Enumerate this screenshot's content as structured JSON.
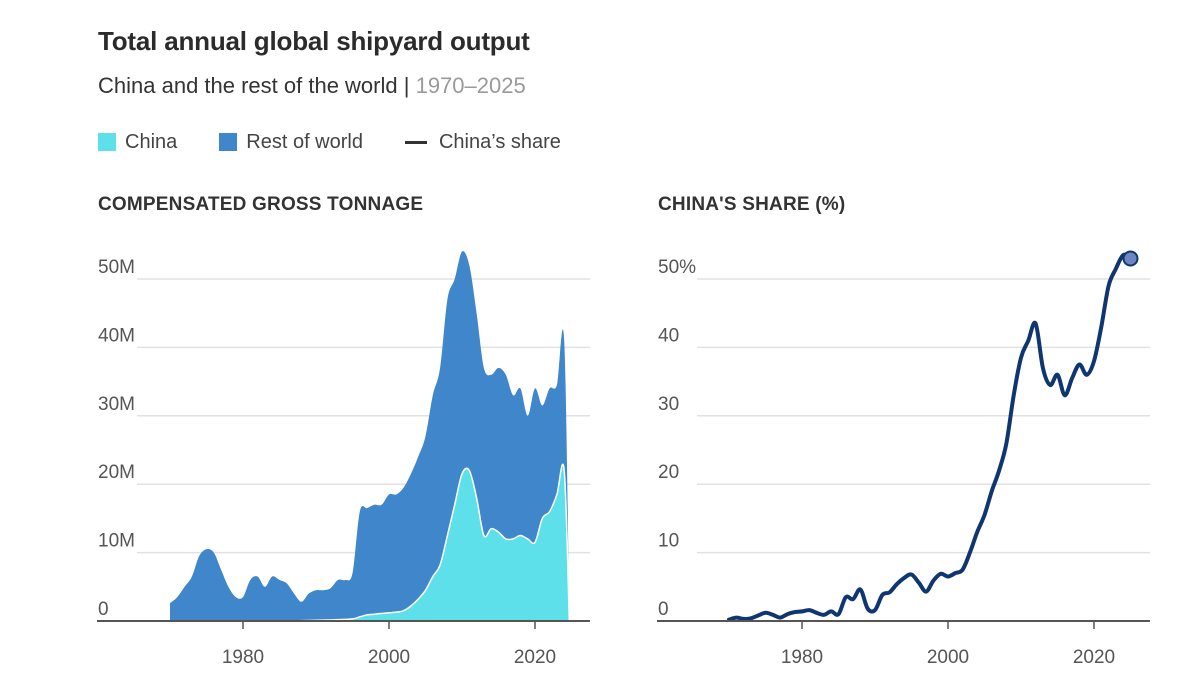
{
  "header": {
    "title": "Total annual global shipyard output",
    "subtitle_main": "China and the rest of the world |",
    "subtitle_range": "1970–2025"
  },
  "legend": {
    "items": [
      {
        "label": "China",
        "kind": "swatch",
        "color": "#5ee0ea"
      },
      {
        "label": "Rest of world",
        "kind": "swatch",
        "color": "#3f86cb"
      },
      {
        "label": "China’s share",
        "kind": "line",
        "color": "#333333"
      }
    ]
  },
  "chart_data": [
    {
      "type": "area",
      "stacked": true,
      "title": "COMPENSATED GROSS TONNAGE",
      "x_tick_labels": [
        "1980",
        "2000",
        "2020"
      ],
      "x_ticks": [
        1980,
        2000,
        2020
      ],
      "y_tick_labels": [
        "0",
        "10M",
        "20M",
        "30M",
        "40M",
        "50M"
      ],
      "y_ticks": [
        0,
        10,
        20,
        30,
        40,
        50
      ],
      "xlim": [
        1960,
        2031
      ],
      "ylim": [
        0,
        52
      ],
      "grid": true,
      "colors": {
        "china": "#5ee0ea",
        "rest": "#3f86cb",
        "grid": "#e2e2e2",
        "axis": "#555555"
      },
      "total": [
        [
          1970,
          2.6
        ],
        [
          1971,
          3.5
        ],
        [
          1972,
          5.0
        ],
        [
          1973,
          6.5
        ],
        [
          1974,
          9.5
        ],
        [
          1975,
          10.5
        ],
        [
          1976,
          10.0
        ],
        [
          1977,
          7.5
        ],
        [
          1978,
          5.0
        ],
        [
          1979,
          3.5
        ],
        [
          1980,
          3.5
        ],
        [
          1981,
          6.0
        ],
        [
          1982,
          6.5
        ],
        [
          1983,
          5.0
        ],
        [
          1984,
          6.5
        ],
        [
          1985,
          6.0
        ],
        [
          1986,
          5.5
        ],
        [
          1987,
          4.0
        ],
        [
          1988,
          2.8
        ],
        [
          1989,
          4.0
        ],
        [
          1990,
          4.5
        ],
        [
          1991,
          4.5
        ],
        [
          1992,
          4.8
        ],
        [
          1993,
          6.0
        ],
        [
          1994,
          6.0
        ],
        [
          1995,
          7.0
        ],
        [
          1996,
          16.0
        ],
        [
          1997,
          16.5
        ],
        [
          1998,
          17.0
        ],
        [
          1999,
          17.0
        ],
        [
          2000,
          18.5
        ],
        [
          2001,
          18.5
        ],
        [
          2002,
          19.5
        ],
        [
          2003,
          21.5
        ],
        [
          2004,
          24.0
        ],
        [
          2005,
          27.0
        ],
        [
          2006,
          33.0
        ],
        [
          2007,
          37.0
        ],
        [
          2008,
          47.0
        ],
        [
          2009,
          50.0
        ],
        [
          2010,
          54.0
        ],
        [
          2011,
          52.0
        ],
        [
          2012,
          45.0
        ],
        [
          2013,
          37.0
        ],
        [
          2014,
          36.0
        ],
        [
          2015,
          37.0
        ],
        [
          2016,
          36.0
        ],
        [
          2017,
          33.0
        ],
        [
          2018,
          34.0
        ],
        [
          2019,
          30.0
        ],
        [
          2020,
          34.0
        ],
        [
          2021,
          31.5
        ],
        [
          2022,
          34.0
        ],
        [
          2023,
          34.5
        ],
        [
          2024,
          41.0
        ],
        [
          2024.7,
          0
        ]
      ],
      "china": [
        [
          1970,
          0
        ],
        [
          1975,
          0
        ],
        [
          1980,
          0
        ],
        [
          1985,
          0
        ],
        [
          1990,
          0.1
        ],
        [
          1993,
          0.2
        ],
        [
          1995,
          0.3
        ],
        [
          1996,
          0.6
        ],
        [
          1997,
          0.9
        ],
        [
          1998,
          1.0
        ],
        [
          1999,
          1.1
        ],
        [
          2000,
          1.2
        ],
        [
          2001,
          1.3
        ],
        [
          2002,
          1.5
        ],
        [
          2003,
          2.2
        ],
        [
          2004,
          3.2
        ],
        [
          2005,
          4.5
        ],
        [
          2006,
          6.5
        ],
        [
          2007,
          8.2
        ],
        [
          2008,
          12.5
        ],
        [
          2009,
          17.0
        ],
        [
          2010,
          21.5
        ],
        [
          2011,
          22.0
        ],
        [
          2012,
          18.0
        ],
        [
          2013,
          12.5
        ],
        [
          2014,
          13.5
        ],
        [
          2015,
          13.0
        ],
        [
          2016,
          12.0
        ],
        [
          2017,
          12.0
        ],
        [
          2018,
          12.5
        ],
        [
          2019,
          12.0
        ],
        [
          2020,
          11.5
        ],
        [
          2021,
          15.0
        ],
        [
          2022,
          16.0
        ],
        [
          2023,
          18.5
        ],
        [
          2024,
          22.0
        ],
        [
          2024.7,
          0
        ]
      ]
    },
    {
      "type": "line",
      "title": "CHINA'S SHARE (%)",
      "x_tick_labels": [
        "1980",
        "2000",
        "2020"
      ],
      "x_ticks": [
        1980,
        2000,
        2020
      ],
      "y_tick_labels": [
        "0",
        "10",
        "20",
        "30",
        "40",
        "50%"
      ],
      "y_ticks": [
        0,
        10,
        20,
        30,
        40,
        50
      ],
      "xlim": [
        1960,
        2031
      ],
      "ylim": [
        0,
        52
      ],
      "grid": true,
      "colors": {
        "line": "#0f3670",
        "dot": "#6d86c0",
        "grid": "#e2e2e2",
        "axis": "#555555"
      },
      "values": [
        [
          1970,
          0.2
        ],
        [
          1971,
          0.5
        ],
        [
          1972,
          0.3
        ],
        [
          1973,
          0.4
        ],
        [
          1974,
          0.8
        ],
        [
          1975,
          1.2
        ],
        [
          1976,
          0.9
        ],
        [
          1977,
          0.5
        ],
        [
          1978,
          1.0
        ],
        [
          1979,
          1.3
        ],
        [
          1980,
          1.4
        ],
        [
          1981,
          1.6
        ],
        [
          1982,
          1.2
        ],
        [
          1983,
          0.9
        ],
        [
          1984,
          1.4
        ],
        [
          1985,
          1.0
        ],
        [
          1986,
          3.5
        ],
        [
          1987,
          3.2
        ],
        [
          1988,
          4.6
        ],
        [
          1989,
          1.8
        ],
        [
          1990,
          1.6
        ],
        [
          1991,
          3.8
        ],
        [
          1992,
          4.2
        ],
        [
          1993,
          5.4
        ],
        [
          1994,
          6.3
        ],
        [
          1995,
          6.8
        ],
        [
          1996,
          5.6
        ],
        [
          1997,
          4.3
        ],
        [
          1998,
          5.9
        ],
        [
          1999,
          6.9
        ],
        [
          2000,
          6.5
        ],
        [
          2001,
          7.0
        ],
        [
          2002,
          7.5
        ],
        [
          2003,
          10.0
        ],
        [
          2004,
          13.0
        ],
        [
          2005,
          15.5
        ],
        [
          2006,
          19.0
        ],
        [
          2007,
          22.0
        ],
        [
          2008,
          26.0
        ],
        [
          2009,
          33.0
        ],
        [
          2010,
          38.5
        ],
        [
          2011,
          41.0
        ],
        [
          2012,
          43.5
        ],
        [
          2013,
          37.0
        ],
        [
          2014,
          34.5
        ],
        [
          2015,
          36.0
        ],
        [
          2016,
          33.0
        ],
        [
          2017,
          35.5
        ],
        [
          2018,
          37.5
        ],
        [
          2019,
          36.0
        ],
        [
          2020,
          38.0
        ],
        [
          2021,
          43.0
        ],
        [
          2022,
          49.0
        ],
        [
          2023,
          51.5
        ],
        [
          2024,
          53.5
        ],
        [
          2025,
          53.0
        ]
      ],
      "end_marker": [
        2025,
        53.0
      ]
    }
  ]
}
